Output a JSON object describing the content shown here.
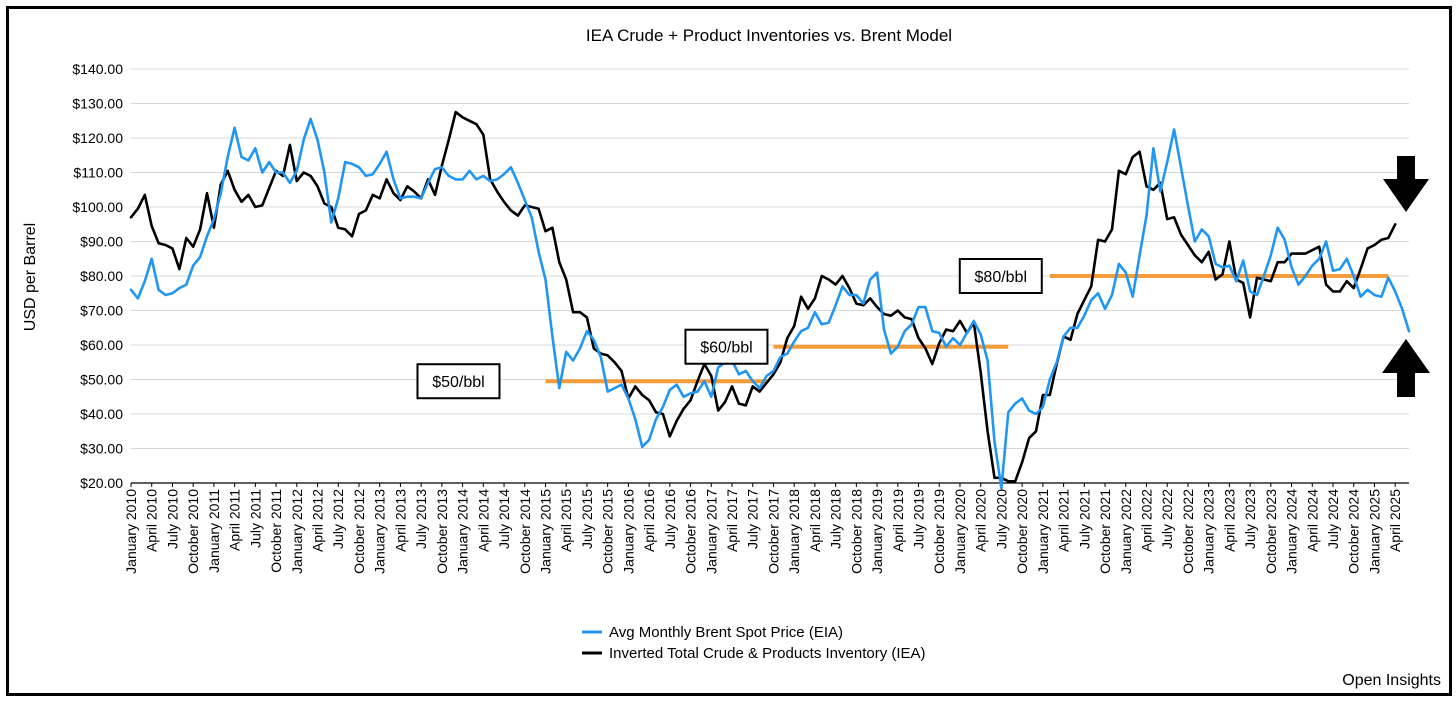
{
  "chart_data": {
    "type": "line",
    "title": "IEA Crude + Product Inventories vs. Brent Model",
    "ylabel": "USD per Barrel",
    "xlabel": "",
    "ylim": [
      20,
      140
    ],
    "y_ticks": [
      "$20.00",
      "$30.00",
      "$40.00",
      "$50.00",
      "$60.00",
      "$70.00",
      "$80.00",
      "$90.00",
      "$100.00",
      "$110.00",
      "$120.00",
      "$130.00",
      "$140.00"
    ],
    "y_tick_values": [
      20,
      30,
      40,
      50,
      60,
      70,
      80,
      90,
      100,
      110,
      120,
      130,
      140
    ],
    "x_tick_labels": [
      "January 2010",
      "April 2010",
      "July 2010",
      "October 2010",
      "January 2011",
      "April 2011",
      "July 2011",
      "October 2011",
      "January 2012",
      "April 2012",
      "July 2012",
      "October 2012",
      "January 2013",
      "April 2013",
      "July 2013",
      "October 2013",
      "January 2014",
      "April 2014",
      "July 2014",
      "October 2014",
      "January 2015",
      "April 2015",
      "July 2015",
      "October 2015",
      "January 2016",
      "April 2016",
      "July 2016",
      "October 2016",
      "January 2017",
      "April 2017",
      "July 2017",
      "October 2017",
      "January 2018",
      "April 2018",
      "July 2018",
      "October 2018",
      "January 2019",
      "April 2019",
      "July 2019",
      "October 2019",
      "January 2020",
      "April 2020",
      "July 2020",
      "October 2020",
      "January 2021",
      "April 2021",
      "July 2021",
      "October 2021",
      "January 2022",
      "April 2022",
      "July 2022",
      "October 2022",
      "January 2023",
      "April 2023",
      "July 2023",
      "October 2023",
      "January 2024",
      "April 2024",
      "July 2024",
      "October 2024",
      "January 2025",
      "April 2025"
    ],
    "grid": "horizontal",
    "legend_position": "bottom-center",
    "series": [
      {
        "name": "Avg Monthly Brent Spot Price (EIA)",
        "color": "#2196F3",
        "start": "January 2010",
        "frequency": "monthly",
        "values": [
          76,
          73.5,
          78.5,
          85,
          76,
          74.5,
          75,
          76.5,
          77.5,
          83,
          85.5,
          91.5,
          96.5,
          104,
          114.5,
          123,
          114.5,
          113.5,
          117,
          110,
          113,
          110,
          110,
          107,
          110.5,
          119.5,
          125.5,
          119.5,
          110,
          95.5,
          102.5,
          113,
          112.5,
          111.5,
          109,
          109.5,
          112.5,
          116,
          108,
          102.5,
          103,
          103,
          102.5,
          107,
          111,
          111.5,
          109,
          108,
          108,
          110.5,
          108,
          109,
          107.5,
          108,
          109.5,
          111.5,
          107,
          102,
          97,
          87,
          79,
          62.5,
          47.5,
          58,
          55.5,
          59,
          64,
          61.5,
          56.5,
          46.5,
          47.5,
          48.5,
          44.5,
          38.5,
          30.5,
          32.5,
          38.5,
          42,
          47,
          48.5,
          45,
          46,
          46.5,
          49.5,
          45,
          53.5,
          55,
          55.5,
          51.5,
          52.5,
          49.5,
          47.5,
          51,
          52.5,
          56.5,
          57.5,
          61,
          64,
          65,
          69.5,
          66,
          66.5,
          71.5,
          77,
          74.5,
          74.5,
          72,
          79,
          81,
          64.5,
          57.5,
          59.5,
          64,
          66,
          71,
          71,
          64,
          63.5,
          59.5,
          62,
          60,
          63.5,
          67,
          63,
          55.5,
          32,
          18.5,
          40.5,
          43,
          44.5,
          41,
          40,
          42,
          50,
          55,
          62.5,
          65,
          65,
          68.5,
          73,
          75,
          70.5,
          74.5,
          83.5,
          81,
          74,
          86,
          97.5,
          117,
          104.5,
          113,
          122.5,
          111.5,
          100.5,
          90,
          93.5,
          91.5,
          83.5,
          82.5,
          83,
          78.5,
          84.5,
          75.5,
          74.5,
          80,
          86,
          94,
          90.5,
          82.5,
          77.5,
          80,
          83,
          85,
          90,
          81.5,
          82,
          85,
          80,
          74,
          76,
          74.5,
          74,
          79.5,
          75.5,
          70.5,
          64
        ]
      },
      {
        "name": "Inverted Total Crude & Products Inventory (IEA)",
        "color": "#000000",
        "start": "January 2010",
        "frequency": "monthly",
        "values": [
          97,
          99.5,
          103.5,
          94.5,
          89.5,
          89,
          88,
          82,
          91,
          88.5,
          93.5,
          104,
          94,
          106.5,
          110.5,
          105,
          101.5,
          103.5,
          100,
          100.5,
          105.5,
          110.5,
          109,
          118,
          107.5,
          110,
          109,
          106,
          101,
          100,
          94,
          93.5,
          91.5,
          98,
          99,
          103.5,
          102.5,
          108,
          104,
          102,
          106,
          104.5,
          102.5,
          108,
          103.5,
          112,
          119.5,
          127.5,
          126,
          125,
          124,
          121,
          108,
          104.5,
          101.5,
          99,
          97.5,
          100.5,
          100,
          99.5,
          93,
          94,
          84,
          79,
          69.5,
          69.5,
          68,
          59,
          57.5,
          57,
          55,
          52.5,
          44.5,
          48,
          45.5,
          44,
          40.5,
          40,
          33.5,
          38,
          41.5,
          44,
          49.5,
          54.5,
          51,
          41,
          43.5,
          48,
          43,
          42.5,
          48,
          46.5,
          49,
          51.5,
          55,
          62,
          65.5,
          74,
          70.5,
          73.5,
          80,
          79,
          77.5,
          80,
          76.5,
          72,
          71.5,
          73.5,
          71,
          69,
          68.5,
          70,
          68,
          67.5,
          62,
          59,
          54.5,
          60.5,
          64.5,
          64,
          67,
          63.5,
          66.5,
          52,
          35,
          21.5,
          21.5,
          20.5,
          20.5,
          26,
          33,
          35,
          45.5,
          45.5,
          54.5,
          62.5,
          61.5,
          69,
          73,
          77,
          90.5,
          90,
          93.5,
          110.5,
          109.5,
          114.5,
          116,
          106,
          105,
          107,
          96.5,
          97,
          92,
          89,
          86,
          84,
          87,
          79,
          80.5,
          90,
          79,
          78,
          68,
          79.5,
          79,
          78.5,
          84,
          84,
          86.5,
          86.5,
          86.5,
          87.5,
          88.5,
          77.5,
          75.5,
          75.5,
          78.5,
          76.5,
          82,
          88,
          89,
          90.5,
          91,
          95
        ]
      }
    ],
    "annotations": [
      {
        "label": "$50/bbl",
        "value": 49.5,
        "from": "January 2015",
        "to": "September 2017"
      },
      {
        "label": "$60/bbl",
        "value": 59.5,
        "from": "October 2017",
        "to": "August 2020"
      },
      {
        "label": "$80/bbl",
        "value": 80,
        "from": "February 2021",
        "to": "March 2025"
      }
    ]
  },
  "colors": {
    "brent": "#2196F3",
    "inventory": "#000000",
    "reference_line": "#F39C3A",
    "grid": "#d8d8d8"
  },
  "icons": [
    "down-arrow-icon",
    "up-arrow-icon"
  ],
  "credit": "Open Insights"
}
